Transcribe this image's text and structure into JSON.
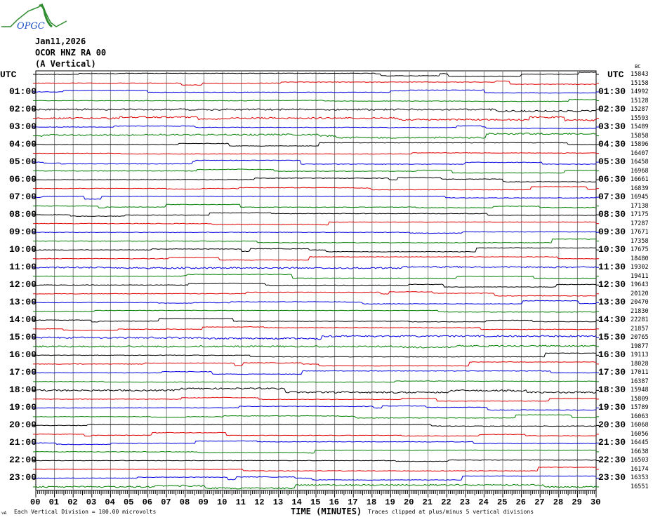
{
  "logo": {
    "text": "OPGC",
    "curve_color": "#2e8b2e",
    "text_color": "#1e50c8"
  },
  "header": {
    "date": "Jan11,2026",
    "station": "OCOR HNZ RA 00",
    "component": "(A Vertical)"
  },
  "left_axis_title": "UTC",
  "right_axis_title": "UTC",
  "left_labels": [
    "UTC",
    "01:00",
    "02:00",
    "03:00",
    "04:00",
    "05:00",
    "06:00",
    "07:00",
    "08:00",
    "09:00",
    "10:00",
    "11:00",
    "12:00",
    "13:00",
    "14:00",
    "15:00",
    "16:00",
    "17:00",
    "18:00",
    "19:00",
    "20:00",
    "21:00",
    "22:00",
    "23:00"
  ],
  "right_labels": [
    "UTC",
    "01:30",
    "02:30",
    "03:30",
    "04:30",
    "05:30",
    "06:30",
    "07:30",
    "08:30",
    "09:30",
    "10:30",
    "11:30",
    "12:30",
    "13:30",
    "14:30",
    "15:30",
    "16:30",
    "17:30",
    "18:30",
    "19:30",
    "20:30",
    "21:30",
    "22:30",
    "23:30"
  ],
  "top_right_mark": "BC",
  "trace_values": [
    "15843",
    "15158",
    "14992",
    "15128",
    "15287",
    "15593",
    "15489",
    "15858",
    "15896",
    "16407",
    "16458",
    "16968",
    "16661",
    "16839",
    "16945",
    "17138",
    "17175",
    "17287",
    "17671",
    "17358",
    "17675",
    "18480",
    "19302",
    "19411",
    "19643",
    "20120",
    "20470",
    "21830",
    "22281",
    "21857",
    "20765",
    "19877",
    "19113",
    "18028",
    "17011",
    "16387",
    "15948",
    "15809",
    "15789",
    "16063",
    "16068",
    "16056",
    "16445",
    "16638",
    "16503",
    "16174",
    "16353",
    "16551"
  ],
  "trace_colors": [
    "#000000",
    "#e00000",
    "#0000e0",
    "#008000"
  ],
  "x_ticks": [
    "00",
    "01",
    "02",
    "03",
    "04",
    "05",
    "06",
    "07",
    "08",
    "09",
    "10",
    "11",
    "12",
    "13",
    "14",
    "15",
    "16",
    "17",
    "18",
    "19",
    "20",
    "21",
    "22",
    "23",
    "24",
    "25",
    "26",
    "27",
    "28",
    "29",
    "30"
  ],
  "x_axis_title": "TIME (MINUTES)",
  "footer": {
    "corner_mark": "vA",
    "scale_note": "Each Vertical Division =  100.00 microvolts",
    "clip_note": "Traces clipped at plus/minus 5 vertical divisions"
  }
}
